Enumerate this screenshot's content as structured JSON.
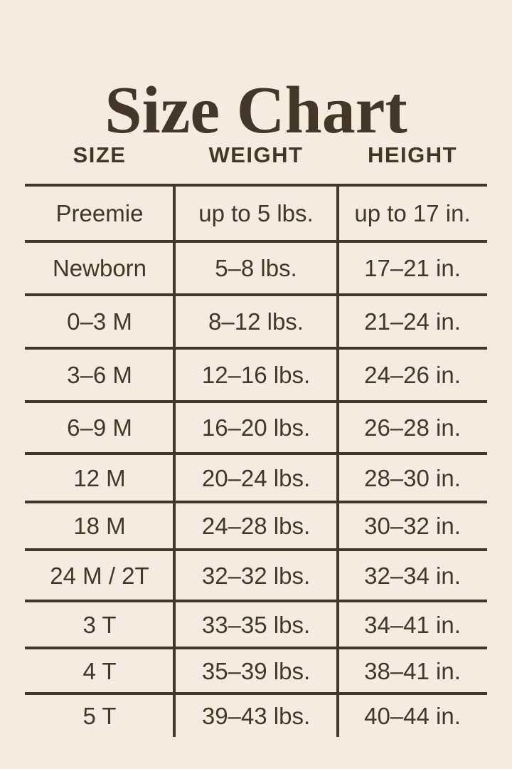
{
  "theme": {
    "background": "#F3ECDF",
    "ink": "#433828"
  },
  "chart_data": {
    "type": "table",
    "title": "Size Chart",
    "columns": [
      "SIZE",
      "WEIGHT",
      "HEIGHT"
    ],
    "rows": [
      {
        "size": "Preemie",
        "weight": "up to 5 lbs.",
        "height": "up to 17 in."
      },
      {
        "size": "Newborn",
        "weight": "5–8 lbs.",
        "height": "17–21 in."
      },
      {
        "size": "0–3 M",
        "weight": "8–12 lbs.",
        "height": "21–24 in."
      },
      {
        "size": "3–6 M",
        "weight": "12–16 lbs.",
        "height": "24–26 in."
      },
      {
        "size": "6–9 M",
        "weight": "16–20 lbs.",
        "height": "26–28 in."
      },
      {
        "size": "12 M",
        "weight": "20–24 lbs.",
        "height": "28–30 in."
      },
      {
        "size": "18 M",
        "weight": "24–28 lbs.",
        "height": "30–32 in."
      },
      {
        "size": "24 M / 2T",
        "weight": "32–32 lbs.",
        "height": "32–34 in."
      },
      {
        "size": "3 T",
        "weight": "33–35 lbs.",
        "height": "34–41 in."
      },
      {
        "size": "4 T",
        "weight": "35–39 lbs.",
        "height": "38–41 in."
      },
      {
        "size": "5 T",
        "weight": "39–43 lbs.",
        "height": "40–44 in."
      }
    ]
  }
}
